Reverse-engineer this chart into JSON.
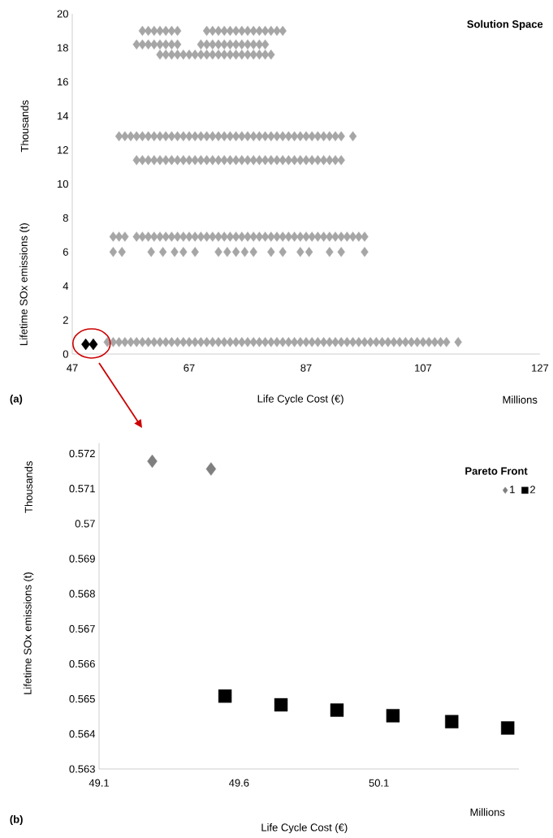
{
  "chart_data": [
    {
      "type": "scatter",
      "title": "Solution Space",
      "xlabel": "Life Cycle Cost (€)",
      "ylabel": "Lifetime SOx emissions (t)",
      "annotations": [
        "Thousands",
        "Millions",
        "(a)"
      ],
      "xlim": [
        47,
        127
      ],
      "ylim": [
        0,
        20
      ],
      "xticks": [
        47,
        67,
        87,
        107,
        127
      ],
      "yticks": [
        0,
        2,
        4,
        6,
        8,
        10,
        12,
        14,
        16,
        18,
        20
      ],
      "series": [
        {
          "color": "#a6a6a6",
          "marker": "diamond",
          "x": [
            59,
            60,
            61,
            62,
            63,
            64,
            65,
            70,
            71,
            72,
            73,
            74,
            75,
            76,
            77,
            78,
            79,
            80,
            81,
            82,
            83
          ],
          "values": [
            19,
            19,
            19,
            19,
            19,
            19,
            19,
            19,
            19,
            19,
            19,
            19,
            19,
            19,
            19,
            19,
            19,
            19,
            19,
            19,
            19
          ]
        },
        {
          "color": "#a6a6a6",
          "marker": "diamond",
          "x": [
            58,
            59,
            60,
            61,
            62,
            63,
            64,
            65,
            69,
            70,
            71,
            72,
            73,
            74,
            75,
            76,
            77,
            78,
            79,
            80
          ],
          "values": [
            18.2,
            18.2,
            18.2,
            18.2,
            18.2,
            18.2,
            18.2,
            18.2,
            18.2,
            18.2,
            18.2,
            18.2,
            18.2,
            18.2,
            18.2,
            18.2,
            18.2,
            18.2,
            18.2,
            18.2
          ]
        },
        {
          "color": "#a6a6a6",
          "marker": "diamond",
          "x": [
            62,
            63,
            64,
            65,
            66,
            67,
            68,
            69,
            70,
            71,
            72,
            73,
            74,
            75,
            76,
            77,
            78,
            79,
            80,
            81
          ],
          "values": [
            17.6,
            17.6,
            17.6,
            17.6,
            17.6,
            17.6,
            17.6,
            17.6,
            17.6,
            17.6,
            17.6,
            17.6,
            17.6,
            17.6,
            17.6,
            17.6,
            17.6,
            17.6,
            17.6,
            17.6
          ]
        },
        {
          "color": "#a6a6a6",
          "marker": "diamond",
          "x": [
            55,
            56,
            57,
            58,
            59,
            60,
            61,
            62,
            63,
            64,
            65,
            66,
            67,
            68,
            69,
            70,
            71,
            72,
            73,
            74,
            75,
            76,
            77,
            78,
            79,
            80,
            81,
            82,
            83,
            84,
            85,
            86,
            87,
            88,
            89,
            90,
            91,
            92,
            93,
            95
          ],
          "values": [
            12.8,
            12.8,
            12.8,
            12.8,
            12.8,
            12.8,
            12.8,
            12.8,
            12.8,
            12.8,
            12.8,
            12.8,
            12.8,
            12.8,
            12.8,
            12.8,
            12.8,
            12.8,
            12.8,
            12.8,
            12.8,
            12.8,
            12.8,
            12.8,
            12.8,
            12.8,
            12.8,
            12.8,
            12.8,
            12.8,
            12.8,
            12.8,
            12.8,
            12.8,
            12.8,
            12.8,
            12.8,
            12.8,
            12.8,
            12.8
          ]
        },
        {
          "color": "#a6a6a6",
          "marker": "diamond",
          "x": [
            58,
            59,
            60,
            61,
            62,
            63,
            64,
            65,
            66,
            67,
            68,
            69,
            70,
            71,
            72,
            73,
            74,
            75,
            76,
            77,
            78,
            79,
            80,
            81,
            82,
            83,
            84,
            85,
            86,
            87,
            88,
            89,
            90,
            91,
            92,
            93
          ],
          "values": [
            11.4,
            11.4,
            11.4,
            11.4,
            11.4,
            11.4,
            11.4,
            11.4,
            11.4,
            11.4,
            11.4,
            11.4,
            11.4,
            11.4,
            11.4,
            11.4,
            11.4,
            11.4,
            11.4,
            11.4,
            11.4,
            11.4,
            11.4,
            11.4,
            11.4,
            11.4,
            11.4,
            11.4,
            11.4,
            11.4,
            11.4,
            11.4,
            11.4,
            11.4,
            11.4,
            11.4
          ]
        },
        {
          "color": "#a6a6a6",
          "marker": "diamond",
          "x": [
            54,
            55,
            56,
            58,
            59,
            60,
            61,
            62,
            63,
            64,
            65,
            66,
            67,
            68,
            69,
            70,
            71,
            72,
            73,
            74,
            75,
            76,
            77,
            78,
            79,
            80,
            81,
            82,
            83,
            84,
            85,
            86,
            87,
            88,
            89,
            90,
            91,
            92,
            93,
            94,
            95,
            96,
            97
          ],
          "values": [
            6.9,
            6.9,
            6.9,
            6.9,
            6.9,
            6.9,
            6.9,
            6.9,
            6.9,
            6.9,
            6.9,
            6.9,
            6.9,
            6.9,
            6.9,
            6.9,
            6.9,
            6.9,
            6.9,
            6.9,
            6.9,
            6.9,
            6.9,
            6.9,
            6.9,
            6.9,
            6.9,
            6.9,
            6.9,
            6.9,
            6.9,
            6.9,
            6.9,
            6.9,
            6.9,
            6.9,
            6.9,
            6.9,
            6.9,
            6.9,
            6.9,
            6.9,
            6.9
          ]
        },
        {
          "color": "#a6a6a6",
          "marker": "diamond",
          "x": [
            54,
            55.5,
            60.5,
            62.5,
            64.5,
            66,
            68,
            72,
            73.5,
            75,
            76.5,
            78,
            81,
            83,
            86,
            87.5,
            91,
            93,
            97
          ],
          "values": [
            6,
            6,
            6,
            6,
            6,
            6,
            6,
            6,
            6,
            6,
            6,
            6,
            6,
            6,
            6,
            6,
            6,
            6,
            6
          ]
        },
        {
          "color": "#a6a6a6",
          "marker": "diamond",
          "x": [
            53,
            54,
            55,
            56,
            57,
            58,
            59,
            60,
            61,
            62,
            63,
            64,
            65,
            66,
            67,
            68,
            69,
            70,
            71,
            72,
            73,
            74,
            75,
            76,
            77,
            78,
            79,
            80,
            81,
            82,
            83,
            84,
            85,
            86,
            87,
            88,
            89,
            90,
            91,
            92,
            93,
            94,
            95,
            96,
            97,
            98,
            99,
            100,
            101,
            102,
            103,
            104,
            105,
            106,
            107,
            108,
            109,
            110,
            111,
            113
          ],
          "values": [
            0.7,
            0.7,
            0.7,
            0.7,
            0.7,
            0.7,
            0.7,
            0.7,
            0.7,
            0.7,
            0.7,
            0.7,
            0.7,
            0.7,
            0.7,
            0.7,
            0.7,
            0.7,
            0.7,
            0.7,
            0.7,
            0.7,
            0.7,
            0.7,
            0.7,
            0.7,
            0.7,
            0.7,
            0.7,
            0.7,
            0.7,
            0.7,
            0.7,
            0.7,
            0.7,
            0.7,
            0.7,
            0.7,
            0.7,
            0.7,
            0.7,
            0.7,
            0.7,
            0.7,
            0.7,
            0.7,
            0.7,
            0.7,
            0.7,
            0.7,
            0.7,
            0.7,
            0.7,
            0.7,
            0.7,
            0.7,
            0.7,
            0.7,
            0.7,
            0.7
          ]
        },
        {
          "color": "#000000",
          "marker": "diamond",
          "x": [
            49.3,
            50.6
          ],
          "values": [
            0.57,
            0.57
          ]
        }
      ]
    },
    {
      "type": "scatter",
      "xlabel": "Life Cycle Cost (€)",
      "ylabel": "Lifetime SOx emissions (t)",
      "annotations": [
        "Thousands",
        "Millions",
        "(b)"
      ],
      "legend_title": "Pareto Front",
      "legend": "top right",
      "xlim": [
        49.1,
        50.6
      ],
      "ylim": [
        0.563,
        0.5723
      ],
      "xticks": [
        49.1,
        49.6,
        50.1
      ],
      "yticks": [
        0.563,
        0.564,
        0.565,
        0.566,
        0.567,
        0.568,
        0.569,
        0.57,
        0.571,
        0.572
      ],
      "series": [
        {
          "name": "1",
          "color": "#7f7f7f",
          "marker": "diamond",
          "x": [
            49.29,
            49.5
          ],
          "values": [
            0.57178,
            0.57156
          ]
        },
        {
          "name": "2",
          "color": "#000000",
          "marker": "square",
          "x": [
            49.55,
            49.75,
            49.95,
            50.15,
            50.36,
            50.56
          ],
          "values": [
            0.56508,
            0.56483,
            0.56468,
            0.56452,
            0.56435,
            0.56417
          ]
        }
      ]
    }
  ]
}
